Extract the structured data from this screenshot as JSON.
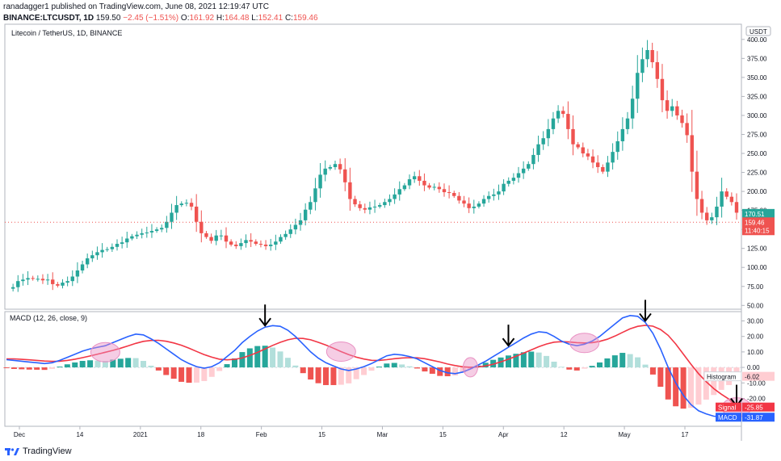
{
  "header": {
    "line1": "ranadagger1 published on TradingView.com, June 08, 2021 12:19:47 UTC",
    "symbol": "BINANCE:LTCUSDT, 1D",
    "price": "159.50",
    "change": "−2.45 (−1.51%)",
    "o_label": "O:",
    "o": "161.92",
    "h_label": "H:",
    "h": "164.48",
    "l_label": "L:",
    "l": "152.41",
    "c_label": "C:",
    "c": "159.46"
  },
  "footer": {
    "brand": "TradingView"
  },
  "colors": {
    "up": "#26a69a",
    "down": "#ef5350",
    "macd": "#2962ff",
    "signal": "#f23645",
    "hist_up_strong": "#26a69a",
    "hist_up_weak": "#b2dfdb",
    "hist_dn_strong": "#ef5350",
    "hist_dn_weak": "#ffcdd2",
    "ellipse": "#e991c3"
  },
  "chart_data": [
    {
      "type": "candlestick",
      "title": "Litecoin / TetherUS, 1D, BINANCE",
      "currency": "USDT",
      "ylim": [
        45,
        420
      ],
      "y_ticks": [
        "50.00",
        "75.00",
        "100.00",
        "125.00",
        "150.00",
        "175.00",
        "200.00",
        "225.00",
        "250.00",
        "275.00",
        "300.00",
        "325.00",
        "350.00",
        "375.00",
        "400.00"
      ],
      "x_ticks": [
        "Dec",
        "14",
        "2021",
        "18",
        "Feb",
        "15",
        "Mar",
        "15",
        "Apr",
        "12",
        "May",
        "17"
      ],
      "price_labels": {
        "upper": "170.51",
        "current": "159.46",
        "countdown": "11:40:15"
      },
      "close_series": [
        72,
        74,
        82,
        84,
        86,
        85,
        85,
        83,
        84,
        78,
        76,
        80,
        82,
        88,
        96,
        104,
        112,
        116,
        120,
        123,
        124,
        127,
        131,
        133,
        138,
        141,
        143,
        145,
        146,
        148,
        150,
        152,
        160,
        172,
        182,
        184,
        185,
        180,
        160,
        145,
        140,
        135,
        142,
        142,
        134,
        130,
        128,
        132,
        136,
        134,
        131,
        130,
        128,
        130,
        134,
        140,
        144,
        150,
        156,
        162,
        176,
        186,
        204,
        222,
        230,
        232,
        236,
        229,
        212,
        190,
        183,
        178,
        176,
        179,
        180,
        182,
        186,
        190,
        196,
        203,
        208,
        216,
        220,
        214,
        208,
        205,
        206,
        203,
        199,
        198,
        194,
        188,
        184,
        178,
        180,
        184,
        190,
        194,
        196,
        200,
        210,
        214,
        218,
        224,
        230,
        236,
        248,
        262,
        270,
        282,
        296,
        306,
        302,
        282,
        262,
        258,
        250,
        246,
        238,
        232,
        226,
        238,
        252,
        266,
        282,
        296,
        322,
        356,
        374,
        386,
        370,
        348,
        320,
        306,
        312,
        300,
        290,
        274,
        226,
        190,
        172,
        162,
        166,
        180,
        200,
        193,
        186,
        172
      ]
    },
    {
      "type": "line",
      "title": "MACD (12, 26, close, 9)",
      "ylim": [
        -38,
        36
      ],
      "y_ticks": [
        "30.00",
        "20.00",
        "10.00",
        "0.00",
        "-10.00",
        "-20.00"
      ],
      "series": [
        {
          "name": "MACD",
          "values": [
            5,
            4.5,
            4,
            3.5,
            3,
            2.5,
            3,
            4.5,
            6.5,
            8.5,
            10.5,
            12,
            13,
            14,
            16,
            18,
            20,
            21.5,
            21,
            18.5,
            15.5,
            12,
            8.5,
            5,
            2.5,
            0.5,
            -0.5,
            0.5,
            3,
            7,
            11,
            16,
            20,
            23.5,
            26,
            27,
            26.5,
            24,
            20,
            15,
            10,
            6,
            3,
            1,
            -1,
            -2,
            -1,
            0.5,
            2.5,
            5,
            7.5,
            8.5,
            8,
            7,
            5.5,
            3,
            0.5,
            -2,
            -3.5,
            -4,
            -3,
            -1,
            1.5,
            4,
            7,
            10,
            13,
            16,
            19,
            21.5,
            23,
            22.5,
            20,
            17,
            15,
            14,
            15,
            17,
            20,
            24,
            28,
            32,
            33.5,
            33,
            29,
            22,
            12,
            0,
            -10,
            -18,
            -24,
            -28,
            -30,
            -31.5,
            -31.8,
            -31.9,
            -31.87
          ]
        },
        {
          "name": "Signal",
          "values": [
            5.5,
            5.5,
            5.2,
            4.9,
            4.5,
            4.1,
            3.9,
            4.0,
            4.5,
            5.3,
            6.3,
            7.4,
            8.6,
            9.8,
            11.0,
            12.4,
            13.9,
            15.5,
            16.8,
            17.4,
            17.5,
            16.9,
            15.8,
            14.3,
            12.4,
            10.3,
            8.3,
            6.6,
            5.3,
            4.9,
            5.2,
            6.1,
            7.7,
            9.7,
            12.0,
            14.2,
            16.2,
            17.8,
            18.8,
            18.7,
            17.8,
            16.2,
            14.4,
            12.4,
            10.2,
            8.3,
            6.6,
            5.4,
            4.6,
            4.5,
            5.0,
            5.6,
            6.1,
            6.3,
            6.2,
            5.6,
            4.6,
            3.5,
            2.2,
            1.2,
            0.4,
            0.1,
            0.3,
            1.0,
            2.1,
            3.6,
            5.3,
            7.2,
            9.2,
            11.3,
            13.4,
            15.1,
            16.3,
            16.6,
            16.4,
            16.0,
            15.8,
            16.0,
            16.8,
            18.2,
            20.2,
            22.6,
            24.9,
            26.5,
            27.2,
            26.6,
            24.5,
            20.7,
            15.1,
            8.6,
            2.1,
            -4.0,
            -9.2,
            -13.7,
            -17.3,
            -20.5,
            -25.85
          ]
        },
        {
          "name": "Histogram",
          "values": [
            -0.5,
            -1,
            -1.2,
            -1.4,
            -1.5,
            -1.6,
            -0.9,
            0.5,
            2,
            3.2,
            4.2,
            4.6,
            4.4,
            4.2,
            5,
            5.6,
            6.1,
            6,
            4.2,
            1.1,
            -2,
            -4.9,
            -7.3,
            -9.3,
            -9.9,
            -9.8,
            -8.8,
            -6.1,
            -2.3,
            2.1,
            5.8,
            9.9,
            12.3,
            13.8,
            14,
            12.8,
            10.3,
            6.2,
            1.2,
            -3.7,
            -7.8,
            -10.2,
            -11.4,
            -11.4,
            -11.2,
            -10.3,
            -7.6,
            -4.9,
            -2.1,
            0.5,
            2.5,
            2.9,
            1.9,
            0.7,
            -0.7,
            -2.6,
            -4.1,
            -5.5,
            -5.7,
            -5.2,
            -3.4,
            -1.1,
            1.2,
            3,
            4.9,
            6.4,
            7.7,
            8.8,
            9.8,
            10.2,
            9.6,
            7.4,
            3.7,
            0.4,
            -1.4,
            -2,
            -0.8,
            1,
            3.2,
            5.8,
            7.8,
            9.4,
            8.6,
            6.5,
            1.8,
            -4.6,
            -12.5,
            -20.7,
            -25.1,
            -26.6,
            -26.1,
            -24,
            -20.8,
            -17.8,
            -14.5,
            -11.4,
            -6.02
          ]
        }
      ],
      "value_labels": {
        "Histogram": "-6.02",
        "Signal": "-25.85",
        "MACD": "-31.87"
      }
    }
  ]
}
